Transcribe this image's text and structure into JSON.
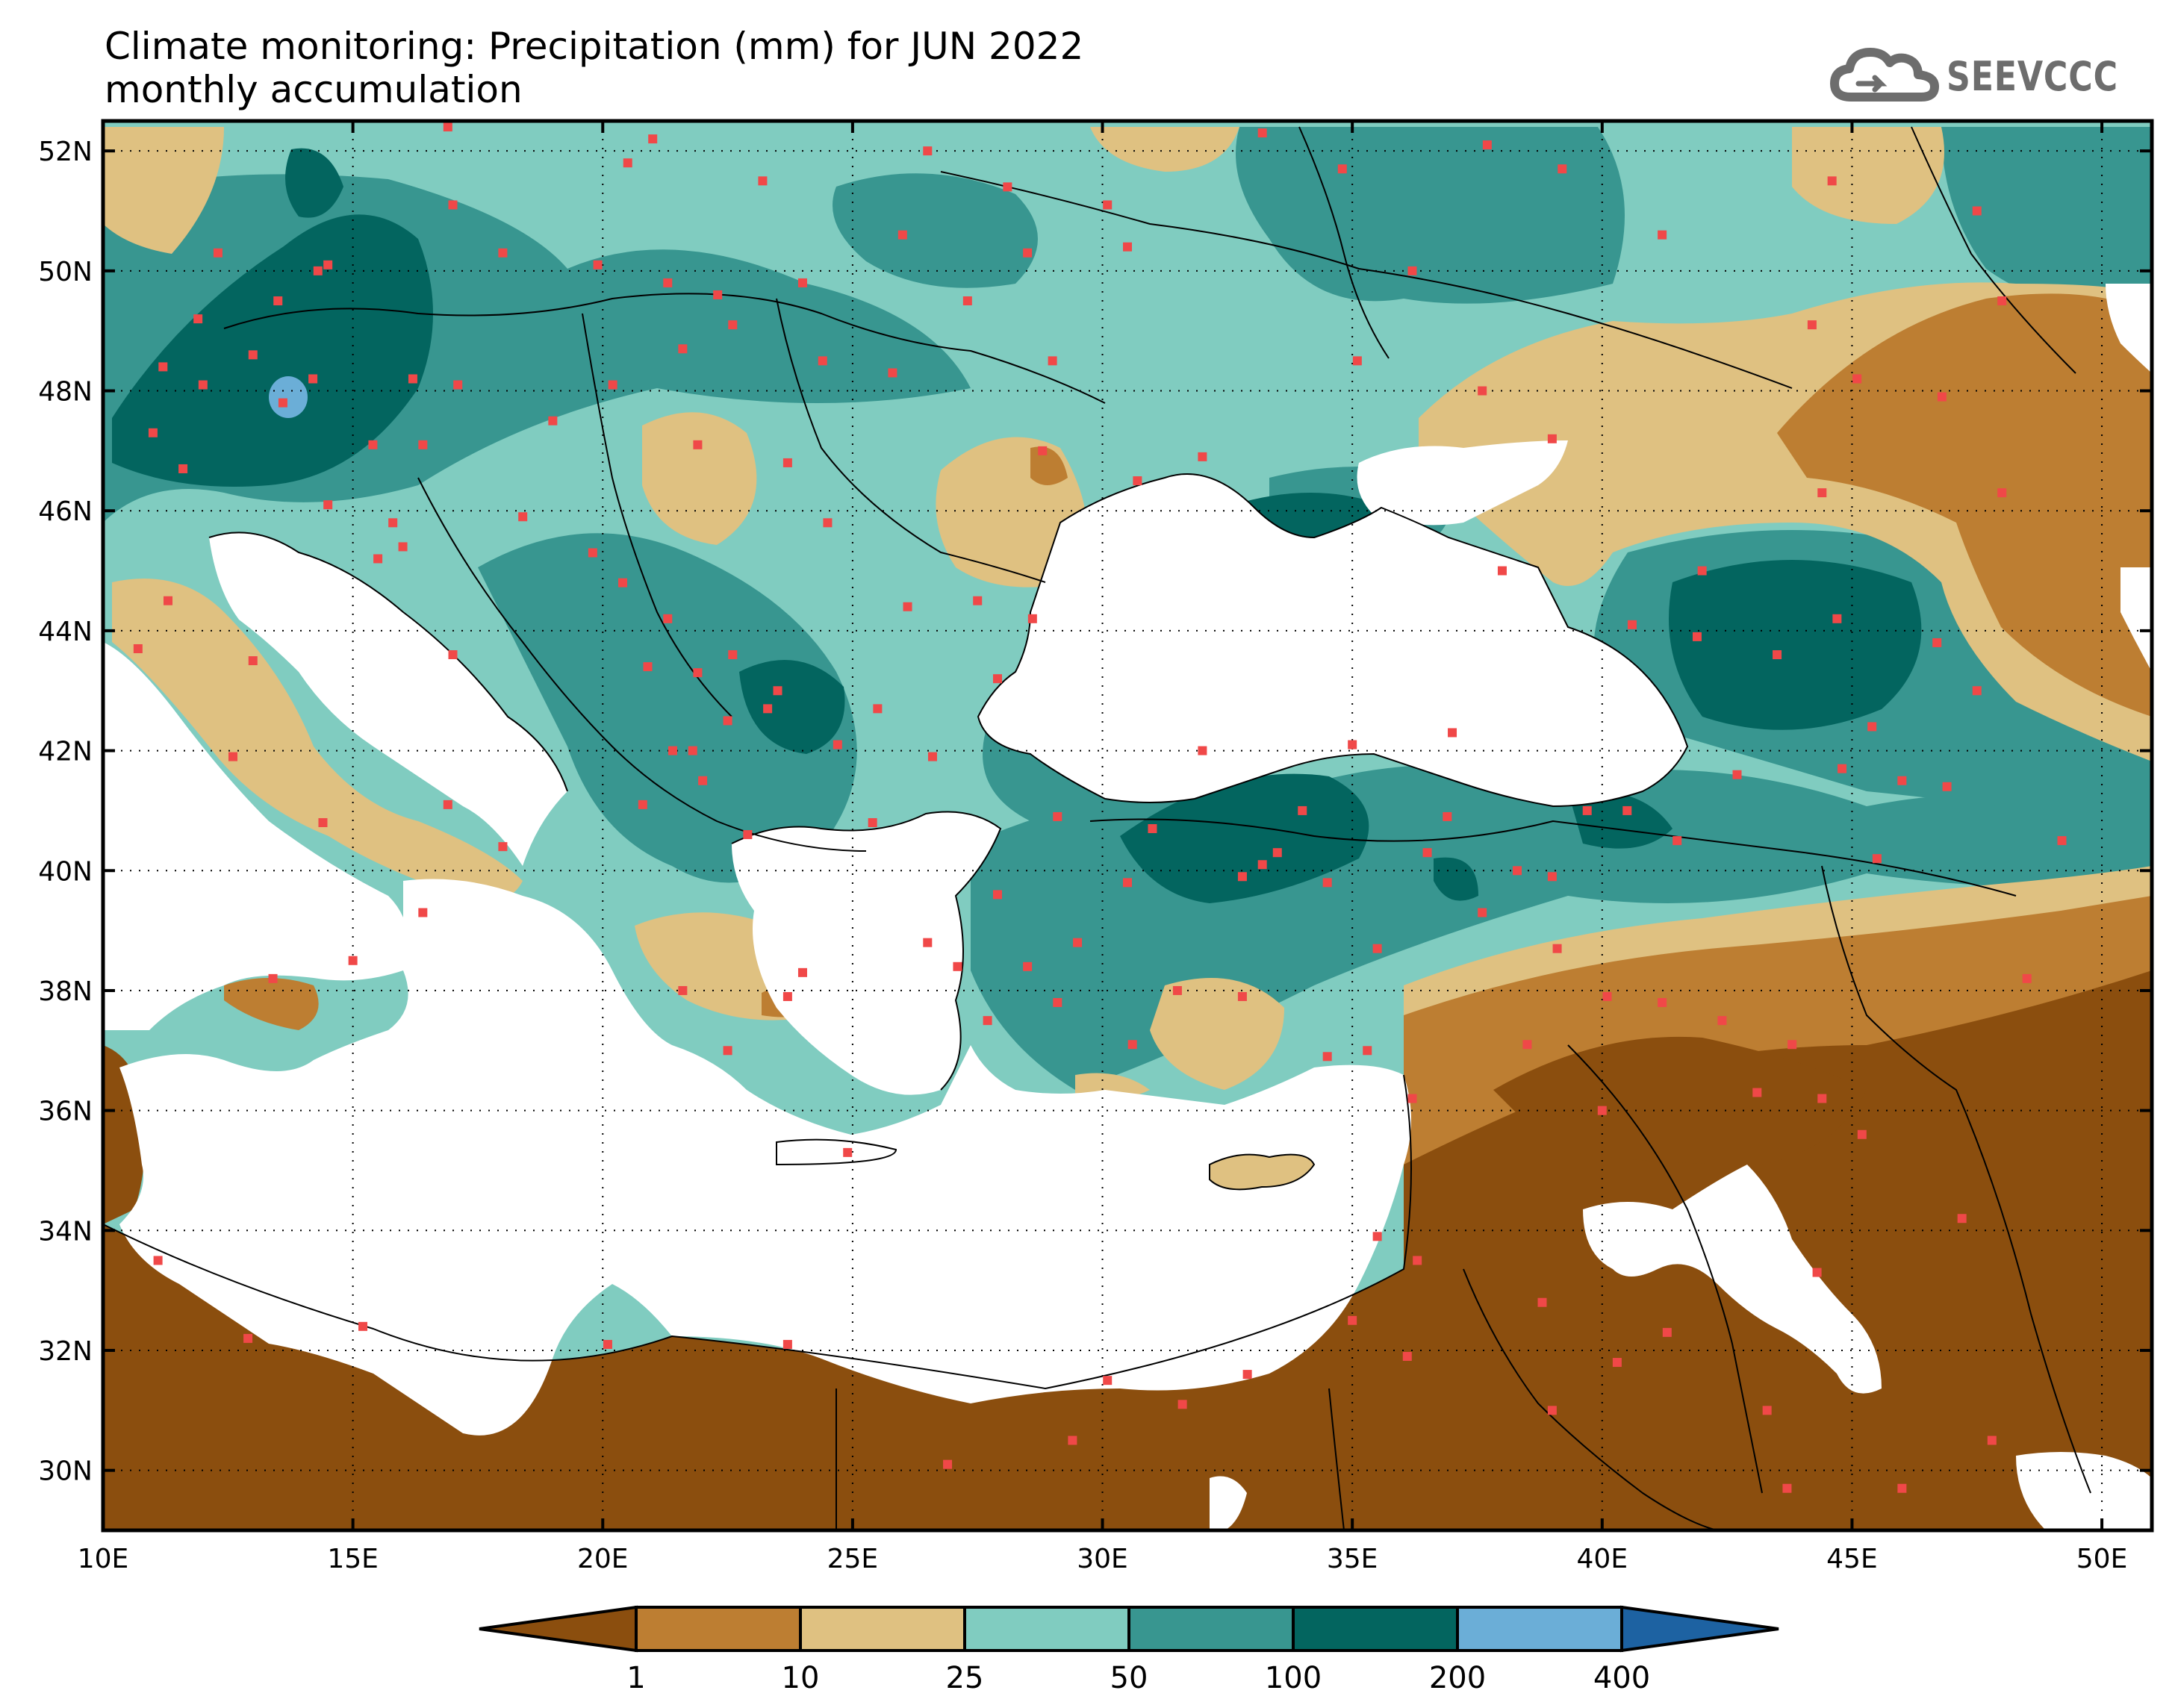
{
  "title": {
    "line1": "Climate monitoring: Precipitation (mm) for JUN 2022",
    "line2": "monthly accumulation"
  },
  "logo": {
    "text": "SEEVCCC",
    "icon": "cloud-icon",
    "color": "#6d6d6d"
  },
  "map": {
    "lon_range": [
      10,
      51
    ],
    "lat_range": [
      29,
      52.5
    ],
    "lon_ticks": [
      {
        "value": 10,
        "label": "10E"
      },
      {
        "value": 15,
        "label": "15E"
      },
      {
        "value": 20,
        "label": "20E"
      },
      {
        "value": 25,
        "label": "25E"
      },
      {
        "value": 30,
        "label": "30E"
      },
      {
        "value": 35,
        "label": "35E"
      },
      {
        "value": 40,
        "label": "40E"
      },
      {
        "value": 45,
        "label": "45E"
      },
      {
        "value": 50,
        "label": "50E"
      }
    ],
    "lat_ticks": [
      {
        "value": 30,
        "label": "30N"
      },
      {
        "value": 32,
        "label": "32N"
      },
      {
        "value": 34,
        "label": "34N"
      },
      {
        "value": 36,
        "label": "36N"
      },
      {
        "value": 38,
        "label": "38N"
      },
      {
        "value": 40,
        "label": "40N"
      },
      {
        "value": 42,
        "label": "42N"
      },
      {
        "value": 44,
        "label": "44N"
      },
      {
        "value": 46,
        "label": "46N"
      },
      {
        "value": 48,
        "label": "48N"
      },
      {
        "value": 50,
        "label": "50N"
      },
      {
        "value": 52,
        "label": "52N"
      }
    ],
    "gridlines": "dotted",
    "stations_color": "#f04848",
    "stations": [
      [
        12.3,
        50.3
      ],
      [
        13.5,
        49.5
      ],
      [
        14.5,
        50.1
      ],
      [
        14.3,
        50.0
      ],
      [
        11.2,
        48.4
      ],
      [
        12.0,
        48.1
      ],
      [
        13.6,
        47.8
      ],
      [
        14.2,
        48.2
      ],
      [
        16.2,
        48.2
      ],
      [
        17.1,
        48.1
      ],
      [
        16.4,
        47.1
      ],
      [
        15.4,
        47.1
      ],
      [
        11.9,
        49.2
      ],
      [
        13.0,
        48.6
      ],
      [
        11.0,
        47.3
      ],
      [
        11.6,
        46.7
      ],
      [
        14.5,
        46.1
      ],
      [
        15.8,
        45.8
      ],
      [
        16.0,
        45.4
      ],
      [
        18.4,
        45.9
      ],
      [
        19.8,
        45.3
      ],
      [
        20.4,
        44.8
      ],
      [
        21.3,
        44.2
      ],
      [
        20.9,
        43.4
      ],
      [
        21.9,
        43.3
      ],
      [
        22.6,
        43.6
      ],
      [
        23.5,
        43.0
      ],
      [
        21.4,
        42.0
      ],
      [
        22.0,
        41.5
      ],
      [
        22.5,
        42.5
      ],
      [
        21.8,
        42.0
      ],
      [
        20.8,
        41.1
      ],
      [
        23.3,
        42.7
      ],
      [
        24.7,
        42.1
      ],
      [
        25.5,
        42.7
      ],
      [
        26.6,
        41.9
      ],
      [
        27.9,
        43.2
      ],
      [
        27.5,
        44.5
      ],
      [
        26.1,
        44.4
      ],
      [
        28.6,
        44.2
      ],
      [
        24.5,
        45.8
      ],
      [
        23.7,
        46.8
      ],
      [
        21.9,
        47.1
      ],
      [
        20.2,
        48.1
      ],
      [
        19.0,
        47.5
      ],
      [
        21.6,
        48.7
      ],
      [
        22.3,
        49.6
      ],
      [
        24.0,
        49.8
      ],
      [
        26.0,
        50.6
      ],
      [
        30.5,
        50.4
      ],
      [
        29.0,
        48.5
      ],
      [
        30.7,
        46.5
      ],
      [
        28.8,
        47.0
      ],
      [
        32.0,
        46.9
      ],
      [
        35.1,
        48.5
      ],
      [
        36.2,
        50.0
      ],
      [
        37.6,
        48.0
      ],
      [
        34.8,
        51.7
      ],
      [
        37.7,
        52.1
      ],
      [
        39.2,
        51.7
      ],
      [
        41.2,
        50.6
      ],
      [
        44.2,
        49.1
      ],
      [
        45.1,
        48.2
      ],
      [
        46.8,
        47.9
      ],
      [
        48.0,
        46.3
      ],
      [
        44.4,
        46.3
      ],
      [
        42.0,
        45.0
      ],
      [
        41.9,
        43.9
      ],
      [
        43.5,
        43.6
      ],
      [
        44.7,
        44.2
      ],
      [
        45.4,
        42.4
      ],
      [
        46.0,
        41.5
      ],
      [
        44.8,
        41.7
      ],
      [
        42.7,
        41.6
      ],
      [
        40.5,
        41.0
      ],
      [
        39.7,
        41.0
      ],
      [
        38.3,
        40.0
      ],
      [
        36.5,
        40.3
      ],
      [
        34.0,
        41.0
      ],
      [
        33.2,
        40.1
      ],
      [
        32.8,
        39.9
      ],
      [
        30.5,
        39.8
      ],
      [
        29.1,
        40.9
      ],
      [
        27.9,
        39.6
      ],
      [
        28.5,
        38.4
      ],
      [
        27.1,
        38.4
      ],
      [
        29.1,
        37.8
      ],
      [
        30.6,
        37.1
      ],
      [
        31.5,
        38.0
      ],
      [
        34.5,
        36.9
      ],
      [
        35.3,
        37.0
      ],
      [
        36.2,
        36.2
      ],
      [
        38.5,
        37.1
      ],
      [
        40.1,
        37.9
      ],
      [
        41.2,
        37.8
      ],
      [
        42.4,
        37.5
      ],
      [
        43.8,
        37.1
      ],
      [
        44.4,
        36.2
      ],
      [
        43.1,
        36.3
      ],
      [
        38.8,
        32.8
      ],
      [
        39.0,
        31.0
      ],
      [
        36.1,
        31.9
      ],
      [
        35.0,
        32.5
      ],
      [
        35.5,
        33.9
      ],
      [
        36.3,
        33.5
      ],
      [
        40.3,
        31.8
      ],
      [
        41.3,
        32.3
      ],
      [
        43.3,
        31.0
      ],
      [
        44.3,
        33.3
      ],
      [
        47.2,
        34.2
      ],
      [
        47.8,
        30.5
      ],
      [
        46.0,
        29.7
      ],
      [
        43.7,
        29.7
      ],
      [
        30.1,
        31.5
      ],
      [
        26.9,
        30.1
      ],
      [
        23.7,
        32.1
      ],
      [
        20.1,
        32.1
      ],
      [
        15.2,
        32.4
      ],
      [
        12.9,
        32.2
      ],
      [
        11.1,
        33.5
      ],
      [
        31.6,
        31.1
      ],
      [
        32.9,
        31.6
      ],
      [
        29.4,
        30.5
      ],
      [
        24.9,
        35.3
      ],
      [
        22.5,
        37.0
      ],
      [
        21.6,
        38.0
      ],
      [
        23.7,
        37.9
      ],
      [
        22.9,
        40.6
      ],
      [
        25.4,
        40.8
      ],
      [
        26.5,
        38.8
      ],
      [
        27.7,
        37.5
      ],
      [
        24.0,
        38.3
      ],
      [
        14.4,
        40.8
      ],
      [
        16.9,
        41.1
      ],
      [
        15.0,
        38.5
      ],
      [
        13.4,
        38.2
      ],
      [
        12.6,
        41.9
      ],
      [
        17.0,
        43.6
      ],
      [
        15.5,
        45.2
      ],
      [
        11.3,
        44.5
      ],
      [
        10.7,
        43.7
      ],
      [
        13.0,
        43.5
      ],
      [
        16.4,
        39.3
      ],
      [
        18.0,
        40.4
      ],
      [
        37.6,
        39.3
      ],
      [
        39.1,
        38.7
      ],
      [
        35.5,
        38.7
      ],
      [
        29.5,
        38.8
      ],
      [
        32.0,
        42.0
      ],
      [
        35.0,
        42.1
      ],
      [
        37.0,
        42.3
      ],
      [
        39.0,
        39.9
      ],
      [
        40.0,
        36.0
      ],
      [
        32.8,
        37.9
      ],
      [
        31.0,
        40.7
      ],
      [
        33.5,
        40.3
      ],
      [
        34.5,
        39.8
      ],
      [
        36.9,
        40.9
      ],
      [
        41.5,
        40.5
      ],
      [
        45.5,
        40.2
      ],
      [
        46.9,
        41.4
      ],
      [
        49.2,
        40.5
      ],
      [
        48.5,
        38.2
      ],
      [
        45.2,
        35.6
      ],
      [
        38.0,
        45.0
      ],
      [
        40.6,
        44.1
      ],
      [
        46.7,
        43.8
      ],
      [
        47.5,
        43.0
      ],
      [
        39.0,
        47.2
      ],
      [
        48.0,
        49.5
      ],
      [
        44.6,
        51.5
      ],
      [
        47.5,
        51.0
      ],
      [
        20.5,
        51.8
      ],
      [
        21.0,
        52.2
      ],
      [
        23.2,
        51.5
      ],
      [
        26.5,
        52.0
      ],
      [
        28.1,
        51.4
      ],
      [
        30.1,
        51.1
      ],
      [
        33.2,
        52.3
      ],
      [
        16.9,
        52.4
      ],
      [
        17.0,
        51.1
      ],
      [
        18.0,
        50.3
      ],
      [
        19.9,
        50.1
      ],
      [
        21.3,
        49.8
      ],
      [
        22.6,
        49.1
      ],
      [
        24.4,
        48.5
      ],
      [
        25.8,
        48.3
      ],
      [
        27.3,
        49.5
      ],
      [
        28.5,
        50.3
      ]
    ]
  },
  "legend": {
    "boundaries": [
      "1",
      "10",
      "25",
      "50",
      "100",
      "200",
      "400"
    ],
    "colors": [
      "#8b4e0e",
      "#bd7e32",
      "#dfc181",
      "#80ccc0",
      "#389690",
      "#03655f",
      "#6baed7",
      "#1d62a2"
    ]
  }
}
